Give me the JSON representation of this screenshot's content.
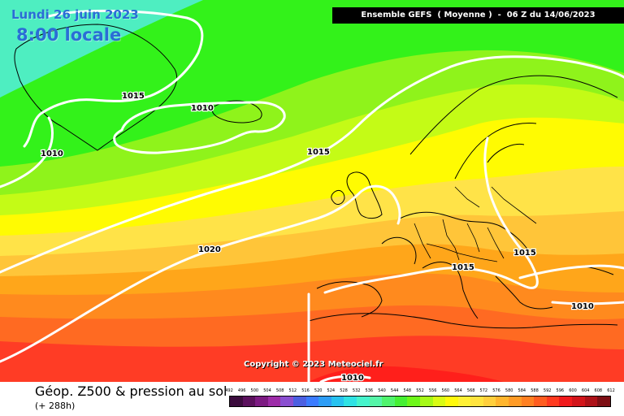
{
  "header": {
    "date": "Lundi 26 juin 2023",
    "local_time": "8:00 locale",
    "run_info": "Ensemble GEFS  ( Moyenne )  -  06 Z du 14/06/2023"
  },
  "map": {
    "isobar_labels": [
      "1015",
      "1010",
      "1010",
      "1015",
      "1020",
      "1015",
      "1015",
      "1010",
      "1010"
    ],
    "copyright": "Copyright © 2023 Meteociel.fr",
    "colors": {
      "cyan": "#4eeec1",
      "green": "#33f21a",
      "lime": "#c4fb16",
      "yellow": "#fffb02",
      "orange": "#ffa61a",
      "red": "#ff3c25"
    }
  },
  "footer": {
    "title": "Géop. Z500 & pression au sol",
    "subtitle": "(+ 288h)"
  },
  "legend": {
    "labels": [
      "492",
      "496",
      "500",
      "504",
      "508",
      "512",
      "516",
      "520",
      "524",
      "528",
      "532",
      "536",
      "540",
      "544",
      "548",
      "552",
      "556",
      "560",
      "564",
      "568",
      "572",
      "576",
      "580",
      "584",
      "588",
      "592",
      "596",
      "600",
      "604",
      "608",
      "612"
    ],
    "colors": [
      "#3b0b3d",
      "#5b105d",
      "#7c1a82",
      "#9d2ca8",
      "#8a4fd0",
      "#4c5fe1",
      "#3b7bff",
      "#2d9df6",
      "#27c2f0",
      "#2fe2e4",
      "#46f4cc",
      "#55f5a8",
      "#4ff36d",
      "#45ef33",
      "#6df71a",
      "#a6f917",
      "#d9fc14",
      "#fff90b",
      "#fff136",
      "#ffe43f",
      "#ffcf3c",
      "#ffb52d",
      "#ff9b26",
      "#ff8022",
      "#ff5d20",
      "#ff3a1f",
      "#f01a1c",
      "#d2141a",
      "#ad1118",
      "#7d0e14"
    ]
  }
}
